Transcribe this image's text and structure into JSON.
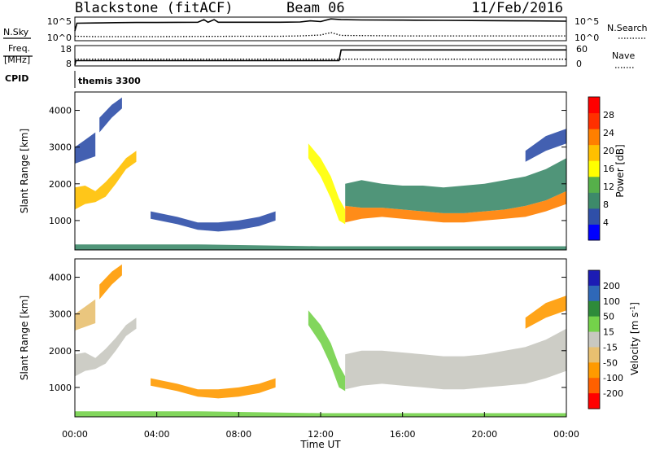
{
  "header": {
    "station": "Blackstone (fitACF)",
    "beam": "Beam 06",
    "date": "11/Feb/2016"
  },
  "strip_labels": {
    "nsky": "N.Sky",
    "nsearch": "N.Search",
    "freq_line1": "Freq.",
    "freq_line2": "[MHz]",
    "nave": "Nave",
    "cpid": "CPID",
    "cpid_value": "themis 3300",
    "noise_ticks_left": [
      "10^5",
      "10^0"
    ],
    "noise_ticks_right": [
      "10^5",
      "10^0"
    ],
    "freq_ticks_left": [
      "18",
      "8"
    ],
    "nave_ticks_right": [
      "60",
      "0"
    ]
  },
  "colors": {
    "power_scale": [
      "#0000ff",
      "#2f4fa8",
      "#3d8a6a",
      "#56b04a",
      "#ffff00",
      "#ffc000",
      "#ff7f00",
      "#ff3000",
      "#ff0000"
    ],
    "velocity_scale": [
      "#1c1cb4",
      "#2f68b8",
      "#2e8b3a",
      "#74d24a",
      "#c8c8c0",
      "#e8c070",
      "#ff9a00",
      "#ff6000",
      "#ff0000"
    ],
    "ground_scatter": "#c8c8c0"
  },
  "chart_data": [
    {
      "type": "line",
      "name": "noise",
      "x_unit": "hours UT",
      "series": [
        {
          "name": "N.Sky",
          "x": [
            0,
            0.1,
            1,
            2,
            3,
            4,
            5,
            6,
            6.3,
            6.5,
            6.8,
            7,
            8,
            9,
            10,
            11,
            11.5,
            12,
            12.5,
            13,
            14,
            16,
            18,
            20,
            22,
            24
          ],
          "values": [
            100,
            8000,
            9000,
            11000,
            12000,
            12000,
            13000,
            14000,
            60000,
            14000,
            60000,
            14000,
            14000,
            14000,
            14000,
            16000,
            30000,
            20000,
            90000,
            60000,
            50000,
            45000,
            40000,
            35000,
            30000,
            25000
          ]
        },
        {
          "name": "N.Search",
          "x": [
            0,
            1,
            4,
            8,
            10,
            11,
            12,
            12.5,
            13,
            16,
            20,
            24
          ],
          "values": [
            5,
            4,
            4,
            5,
            5,
            6,
            10,
            40,
            8,
            6,
            6,
            6
          ]
        }
      ],
      "ylabel_left": "N.Sky",
      "ylabel_right": "N.Search",
      "ylim": [
        1,
        100000
      ],
      "yscale": "log"
    },
    {
      "type": "line",
      "name": "frequency",
      "x_unit": "hours UT",
      "series": [
        {
          "name": "Freq.",
          "x": [
            0,
            0.05,
            12.9,
            13.0,
            24
          ],
          "values": [
            8,
            10.5,
            10.5,
            16.5,
            16.5
          ]
        },
        {
          "name": "Nave",
          "x": [
            0,
            24
          ],
          "values": [
            20,
            20
          ]
        }
      ],
      "ylim_left": [
        8,
        18
      ],
      "ylim_right": [
        0,
        60
      ]
    },
    {
      "type": "heatmap",
      "name": "power",
      "xlabel": "",
      "ylabel": "Slant Range [km]",
      "xlim": [
        0,
        24
      ],
      "ylim": [
        200,
        4500
      ],
      "yticks": [
        1000,
        2000,
        3000,
        4000
      ],
      "colorbar": {
        "label": "Power [dB]",
        "ticks": [
          4,
          8,
          12,
          16,
          20,
          24,
          28
        ],
        "range": [
          0,
          32
        ]
      },
      "bands": [
        {
          "t": [
            0,
            0.5,
            1.0,
            1.5,
            2.0,
            2.5,
            3.0
          ],
          "range_lo": [
            1300,
            1450,
            1500,
            1650,
            2000,
            2400,
            2600
          ],
          "range_hi": [
            1900,
            1950,
            1800,
            2050,
            2350,
            2700,
            2900
          ],
          "power": 20
        },
        {
          "t": [
            0,
            0.5,
            1.0
          ],
          "range_lo": [
            2550,
            2650,
            2750
          ],
          "range_hi": [
            3000,
            3200,
            3400
          ],
          "power": 6
        },
        {
          "t": [
            1.2,
            1.8,
            2.3
          ],
          "range_lo": [
            3400,
            3800,
            4050
          ],
          "range_hi": [
            3800,
            4150,
            4350
          ],
          "power": 6
        },
        {
          "t": [
            3.7,
            5,
            6,
            7,
            8,
            9,
            9.8
          ],
          "range_lo": [
            1050,
            900,
            750,
            700,
            750,
            850,
            1000
          ],
          "range_hi": [
            1250,
            1100,
            950,
            950,
            1000,
            1100,
            1250
          ],
          "power": 6
        },
        {
          "t": [
            11.4,
            12,
            12.5,
            12.9,
            13.2
          ],
          "range_lo": [
            2700,
            2200,
            1600,
            1000,
            900
          ],
          "range_hi": [
            3100,
            2700,
            2200,
            1600,
            1300
          ],
          "power": 18
        },
        {
          "t": [
            13.2,
            14,
            15,
            16,
            17,
            18,
            19,
            20,
            21,
            22,
            23,
            24
          ],
          "range_lo": [
            950,
            1050,
            1100,
            1050,
            1000,
            950,
            950,
            1000,
            1050,
            1100,
            1250,
            1450
          ],
          "range_hi": [
            1400,
            1350,
            1350,
            1300,
            1250,
            1200,
            1200,
            1250,
            1300,
            1400,
            1550,
            1800
          ],
          "power": 26
        },
        {
          "t": [
            13.2,
            14,
            15,
            16,
            17,
            18,
            19,
            20,
            21,
            22,
            23,
            24
          ],
          "range_lo": [
            1400,
            1350,
            1350,
            1300,
            1250,
            1200,
            1200,
            1250,
            1300,
            1400,
            1550,
            1800
          ],
          "range_hi": [
            2000,
            2100,
            2000,
            1950,
            1950,
            1900,
            1950,
            2000,
            2100,
            2200,
            2400,
            2700
          ],
          "power": 8
        },
        {
          "t": [
            22,
            23,
            24
          ],
          "range_lo": [
            2600,
            2900,
            3100
          ],
          "range_hi": [
            2900,
            3300,
            3500
          ],
          "power": 6
        },
        {
          "t": [
            0,
            6,
            12,
            18,
            24
          ],
          "range_lo": [
            200,
            200,
            200,
            200,
            200
          ],
          "range_hi": [
            350,
            350,
            300,
            300,
            300
          ],
          "power": 10
        }
      ]
    },
    {
      "type": "heatmap",
      "name": "velocity",
      "xlabel": "Time UT",
      "ylabel": "Slant Range [km]",
      "xlim": [
        0,
        24
      ],
      "ylim": [
        200,
        4500
      ],
      "xticks": [
        "00:00",
        "04:00",
        "08:00",
        "12:00",
        "16:00",
        "20:00",
        "00:00"
      ],
      "yticks": [
        1000,
        2000,
        3000,
        4000
      ],
      "colorbar": {
        "label": "Velocity [m s^-1]",
        "ticks": [
          200,
          100,
          50,
          15,
          -15,
          -50,
          -100,
          -200
        ]
      },
      "bands": [
        {
          "t": [
            0,
            0.5,
            1.0,
            1.5,
            2.0,
            2.5,
            3.0
          ],
          "range_lo": [
            1300,
            1450,
            1500,
            1650,
            2000,
            2400,
            2600
          ],
          "range_hi": [
            1900,
            1950,
            1800,
            2050,
            2350,
            2700,
            2900
          ],
          "velocity": 0
        },
        {
          "t": [
            0,
            0.5,
            1.0
          ],
          "range_lo": [
            2550,
            2650,
            2750
          ],
          "range_hi": [
            3000,
            3200,
            3400
          ],
          "velocity": -30
        },
        {
          "t": [
            1.2,
            1.8,
            2.3
          ],
          "range_lo": [
            3400,
            3800,
            4050
          ],
          "range_hi": [
            3800,
            4150,
            4350
          ],
          "velocity": -60
        },
        {
          "t": [
            3.7,
            5,
            6,
            7,
            8,
            9,
            9.8
          ],
          "range_lo": [
            1050,
            900,
            750,
            700,
            750,
            850,
            1000
          ],
          "range_hi": [
            1250,
            1100,
            950,
            950,
            1000,
            1100,
            1250
          ],
          "velocity": -60
        },
        {
          "t": [
            11.4,
            12,
            12.5,
            12.9,
            13.2
          ],
          "range_lo": [
            2700,
            2200,
            1600,
            1000,
            900
          ],
          "range_hi": [
            3100,
            2700,
            2200,
            1600,
            1300
          ],
          "velocity": 40
        },
        {
          "t": [
            13.2,
            14,
            15,
            16,
            17,
            18,
            19,
            20,
            21,
            22,
            23,
            24
          ],
          "range_lo": [
            950,
            1050,
            1100,
            1050,
            1000,
            950,
            950,
            1000,
            1050,
            1100,
            1250,
            1450
          ],
          "range_hi": [
            1900,
            2000,
            2000,
            1950,
            1900,
            1850,
            1850,
            1900,
            2000,
            2100,
            2300,
            2600
          ],
          "velocity": 0
        },
        {
          "t": [
            22,
            23,
            24
          ],
          "range_lo": [
            2600,
            2900,
            3100
          ],
          "range_hi": [
            2900,
            3300,
            3500
          ],
          "velocity": -60
        },
        {
          "t": [
            0,
            6,
            12,
            18,
            24
          ],
          "range_lo": [
            200,
            200,
            200,
            200,
            200
          ],
          "range_hi": [
            350,
            350,
            300,
            300,
            300
          ],
          "velocity": 30
        }
      ]
    }
  ]
}
